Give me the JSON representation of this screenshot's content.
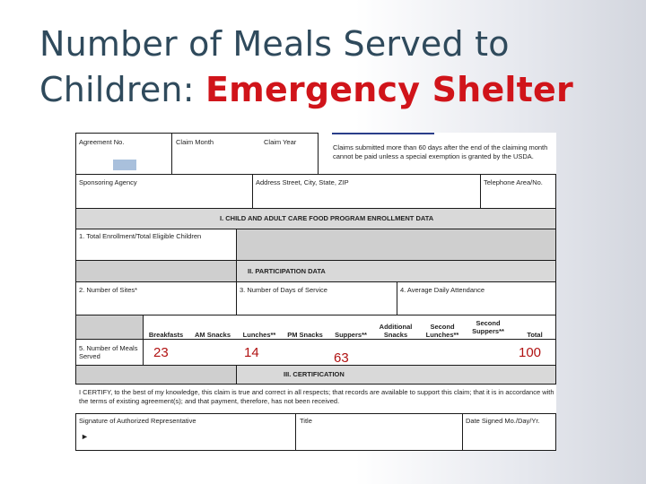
{
  "slide": {
    "title_line1": "Number of Meals Served to",
    "title_line2_prefix": "Children: ",
    "title_line2_accent": "Emergency Shelter"
  },
  "colors": {
    "title": "#2f4a5c",
    "accent": "#d0141a",
    "values": "#b11212"
  },
  "form": {
    "header": {
      "agreement_no": "Agreement No.",
      "claim_month": "Claim Month",
      "claim_year": "Claim Year",
      "claims_note": "Claims submitted more than 60 days after the end of the claiming month cannot be paid unless a special exemption is granted by the USDA."
    },
    "row2": {
      "sponsoring_agency": "Sponsoring Agency",
      "address": "Address Street, City, State, ZIP",
      "telephone": "Telephone Area/No."
    },
    "section1": {
      "title": "I. CHILD AND ADULT CARE FOOD PROGRAM ENROLLMENT DATA",
      "enrollment": "1. Total Enrollment/Total Eligible Children"
    },
    "section2": {
      "title": "II. PARTICIPATION DATA",
      "sites": "2. Number of Sites*",
      "days": "3. Number of Days of Service",
      "attendance": "4. Average Daily Attendance",
      "columns": [
        "Breakfasts",
        "AM Snacks",
        "Lunches**",
        "PM Snacks",
        "Suppers**",
        "Additional Snacks",
        "Second Lunches**",
        "Second Suppers**",
        "Total"
      ],
      "meals_label": "5. Number of Meals Served",
      "values": {
        "breakfasts": "23",
        "lunches": "14",
        "suppers": "63",
        "total": "100"
      }
    },
    "section3": {
      "title": "III. CERTIFICATION",
      "certify_text": "I CERTIFY, to the best of my knowledge, this claim is true and correct in all respects; that records are available to support this claim; that it is in accordance with the terms of existing agreement(s); and that payment, therefore, has not been received.",
      "signature": "Signature of Authorized Representative",
      "title_field": "Title",
      "date_signed": "Date Signed Mo./Day/Yr."
    }
  }
}
